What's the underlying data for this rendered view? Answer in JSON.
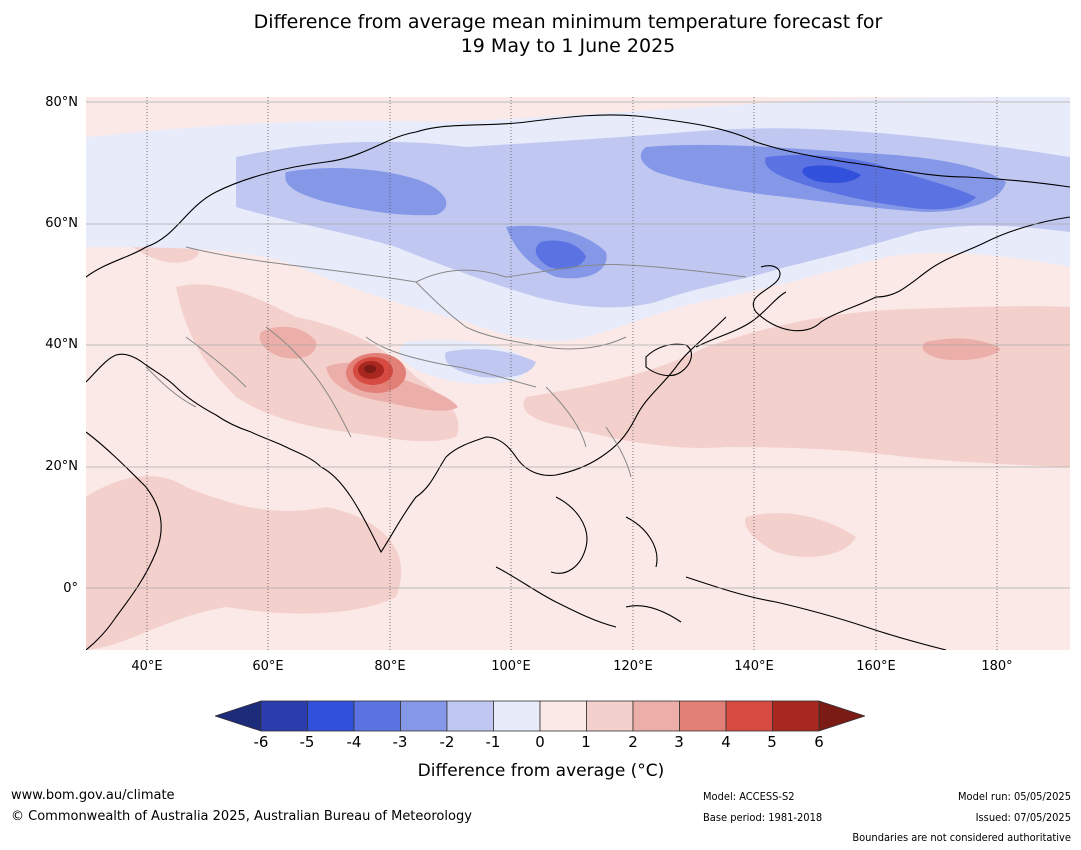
{
  "title": {
    "line1": "Difference from average mean minimum temperature forecast for",
    "line2": "19 May to 1 June 2025"
  },
  "map": {
    "region": "Asia / Western Pacific",
    "lat_labels": [
      "80°N",
      "60°N",
      "40°N",
      "20°N",
      "0°"
    ],
    "lon_labels": [
      "40°E",
      "60°E",
      "80°E",
      "100°E",
      "120°E",
      "140°E",
      "160°E",
      "180°"
    ],
    "colors": {
      "land_outline": "#000000",
      "border": "#888888",
      "grid": "#555555"
    }
  },
  "colorbar": {
    "ticks": [
      "-6",
      "-5",
      "-4",
      "-3",
      "-2",
      "-1",
      "0",
      "1",
      "2",
      "3",
      "4",
      "5",
      "6"
    ],
    "colors": [
      "#1c2b7a",
      "#2a3cae",
      "#3150dc",
      "#5b72e2",
      "#8598e8",
      "#c0c8f2",
      "#e8ebfa",
      "#fbe9e8",
      "#f4d0cc",
      "#ecaea8",
      "#e27f77",
      "#d64a41",
      "#a8281f",
      "#7a1b15"
    ],
    "title": "Difference from average (°C)"
  },
  "footer": {
    "website": "www.bom.gov.au/climate",
    "copyright": "© Commonwealth of Australia 2025, Australian Bureau of Meteorology",
    "model": "Model: ACCESS-S2",
    "base_period": "Base period: 1981-2018",
    "model_run": "Model run: 05/05/2025",
    "issued": "Issued: 07/05/2025",
    "disclaimer": "Boundaries are not considered authoritative"
  }
}
